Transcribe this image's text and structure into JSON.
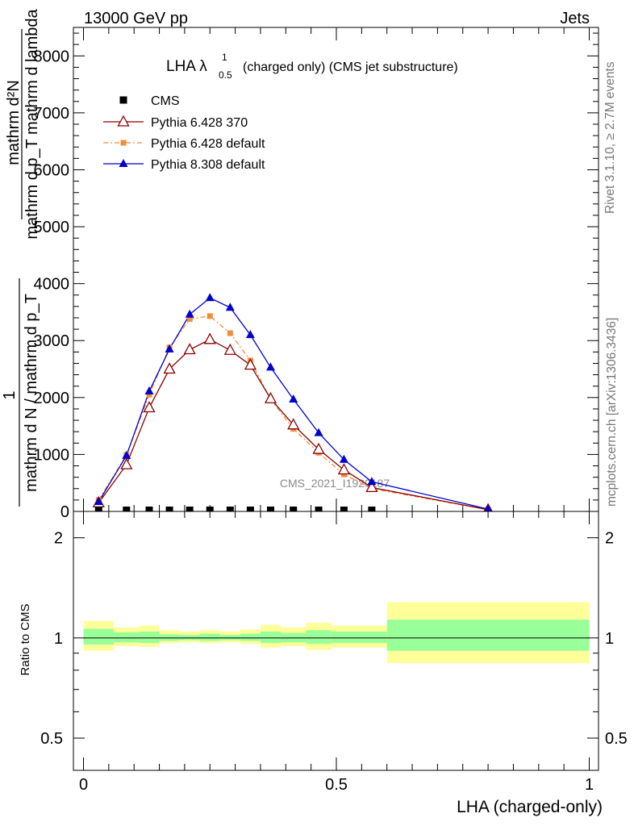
{
  "header": {
    "left": "13000 GeV pp",
    "right": "Jets"
  },
  "side_labels": {
    "rivet": "Rivet 3.1.10, ≥ 2.7M events",
    "mcplots": "mcplots.cern.ch [arXiv:1306.3436]"
  },
  "colors": {
    "cms": "#000000",
    "p6_370": "#8b0000",
    "p6_default": "#f28c3a",
    "p8_default": "#0000cc",
    "band_inner": "#99ff99",
    "band_outer": "#ffff99"
  },
  "chart_data": [
    {
      "type": "line",
      "title_main": "LHA λ",
      "title_sup": "1",
      "title_sub": "0.5",
      "title_rest": "(charged only) (CMS jet substructure)",
      "watermark": "CMS_2021_I1920187",
      "ylabel_top": "mathrm d²N",
      "ylabel_bottom": "mathrm d p_T mathrm d lambda",
      "ylabel_one": "1",
      "ylabel_frac_top": "mathrm d N / mathrm d p_T",
      "ylim": [
        0,
        8500
      ],
      "yticks": [
        0,
        1000,
        2000,
        3000,
        4000,
        5000,
        6000,
        7000,
        8000
      ],
      "yticklabels": [
        "0",
        "1000",
        "2000",
        "3000",
        "4000",
        "5000",
        "6000",
        "7000",
        "8000"
      ],
      "series": [
        {
          "name": "CMS",
          "marker": "square",
          "x": [
            0.03,
            0.085,
            0.13,
            0.17,
            0.21,
            0.25,
            0.29,
            0.33,
            0.37,
            0.415,
            0.465,
            0.515,
            0.57
          ],
          "y": [
            10,
            15,
            20,
            18,
            15,
            12,
            10,
            8,
            7,
            5,
            4,
            3,
            2
          ]
        },
        {
          "name": "Pythia 6.428 370",
          "marker": "triangle-open",
          "x": [
            0.03,
            0.085,
            0.13,
            0.17,
            0.21,
            0.25,
            0.29,
            0.33,
            0.37,
            0.415,
            0.465,
            0.515,
            0.57,
            0.8
          ],
          "y": [
            150,
            820,
            1820,
            2500,
            2840,
            3020,
            2830,
            2570,
            1980,
            1520,
            1090,
            730,
            420,
            30
          ]
        },
        {
          "name": "Pythia 6.428 default",
          "marker": "square-small",
          "x": [
            0.03,
            0.085,
            0.13,
            0.17,
            0.21,
            0.25,
            0.29,
            0.33,
            0.37,
            0.415,
            0.465,
            0.515,
            0.57,
            0.8
          ],
          "y": [
            200,
            990,
            2050,
            2880,
            3380,
            3430,
            3130,
            2650,
            1970,
            1450,
            1030,
            650,
            400,
            30
          ]
        },
        {
          "name": "Pythia 8.308 default",
          "marker": "triangle",
          "x": [
            0.03,
            0.085,
            0.13,
            0.17,
            0.21,
            0.25,
            0.29,
            0.33,
            0.37,
            0.415,
            0.465,
            0.515,
            0.57,
            0.8
          ],
          "y": [
            170,
            980,
            2110,
            2850,
            3460,
            3750,
            3580,
            3100,
            2530,
            1970,
            1380,
            910,
            520,
            40
          ]
        }
      ]
    },
    {
      "type": "area",
      "ylabel": "Ratio to CMS",
      "xlabel": "LHA (charged-only)",
      "xlim": [
        0,
        1
      ],
      "ylim": [
        0.4,
        2.4
      ],
      "xticks": [
        0,
        0.5,
        1
      ],
      "xticklabels": [
        "0",
        "0.5",
        "1"
      ],
      "yticks": [
        0.5,
        1,
        2
      ],
      "yticklabels": [
        "0.5",
        "1",
        "2"
      ],
      "bins": [
        {
          "lo": 0.0,
          "hi": 0.06,
          "outer": [
            0.915,
            1.125
          ],
          "inner": [
            0.955,
            1.065
          ]
        },
        {
          "lo": 0.06,
          "hi": 0.11,
          "outer": [
            0.945,
            1.075
          ],
          "inner": [
            0.97,
            1.04
          ]
        },
        {
          "lo": 0.11,
          "hi": 0.15,
          "outer": [
            0.94,
            1.09
          ],
          "inner": [
            0.965,
            1.045
          ]
        },
        {
          "lo": 0.15,
          "hi": 0.19,
          "outer": [
            0.965,
            1.055
          ],
          "inner": [
            0.98,
            1.025
          ]
        },
        {
          "lo": 0.19,
          "hi": 0.23,
          "outer": [
            0.97,
            1.045
          ],
          "inner": [
            0.985,
            1.02
          ]
        },
        {
          "lo": 0.23,
          "hi": 0.27,
          "outer": [
            0.965,
            1.055
          ],
          "inner": [
            0.98,
            1.03
          ]
        },
        {
          "lo": 0.27,
          "hi": 0.31,
          "outer": [
            0.97,
            1.045
          ],
          "inner": [
            0.985,
            1.02
          ]
        },
        {
          "lo": 0.31,
          "hi": 0.35,
          "outer": [
            0.96,
            1.06
          ],
          "inner": [
            0.98,
            1.03
          ]
        },
        {
          "lo": 0.35,
          "hi": 0.39,
          "outer": [
            0.935,
            1.095
          ],
          "inner": [
            0.965,
            1.045
          ]
        },
        {
          "lo": 0.39,
          "hi": 0.44,
          "outer": [
            0.945,
            1.075
          ],
          "inner": [
            0.97,
            1.035
          ]
        },
        {
          "lo": 0.44,
          "hi": 0.49,
          "outer": [
            0.92,
            1.11
          ],
          "inner": [
            0.96,
            1.055
          ]
        },
        {
          "lo": 0.49,
          "hi": 0.6,
          "outer": [
            0.935,
            1.09
          ],
          "inner": [
            0.965,
            1.045
          ]
        },
        {
          "lo": 0.6,
          "hi": 1.0,
          "outer": [
            0.84,
            1.28
          ],
          "inner": [
            0.915,
            1.135
          ]
        }
      ]
    }
  ]
}
